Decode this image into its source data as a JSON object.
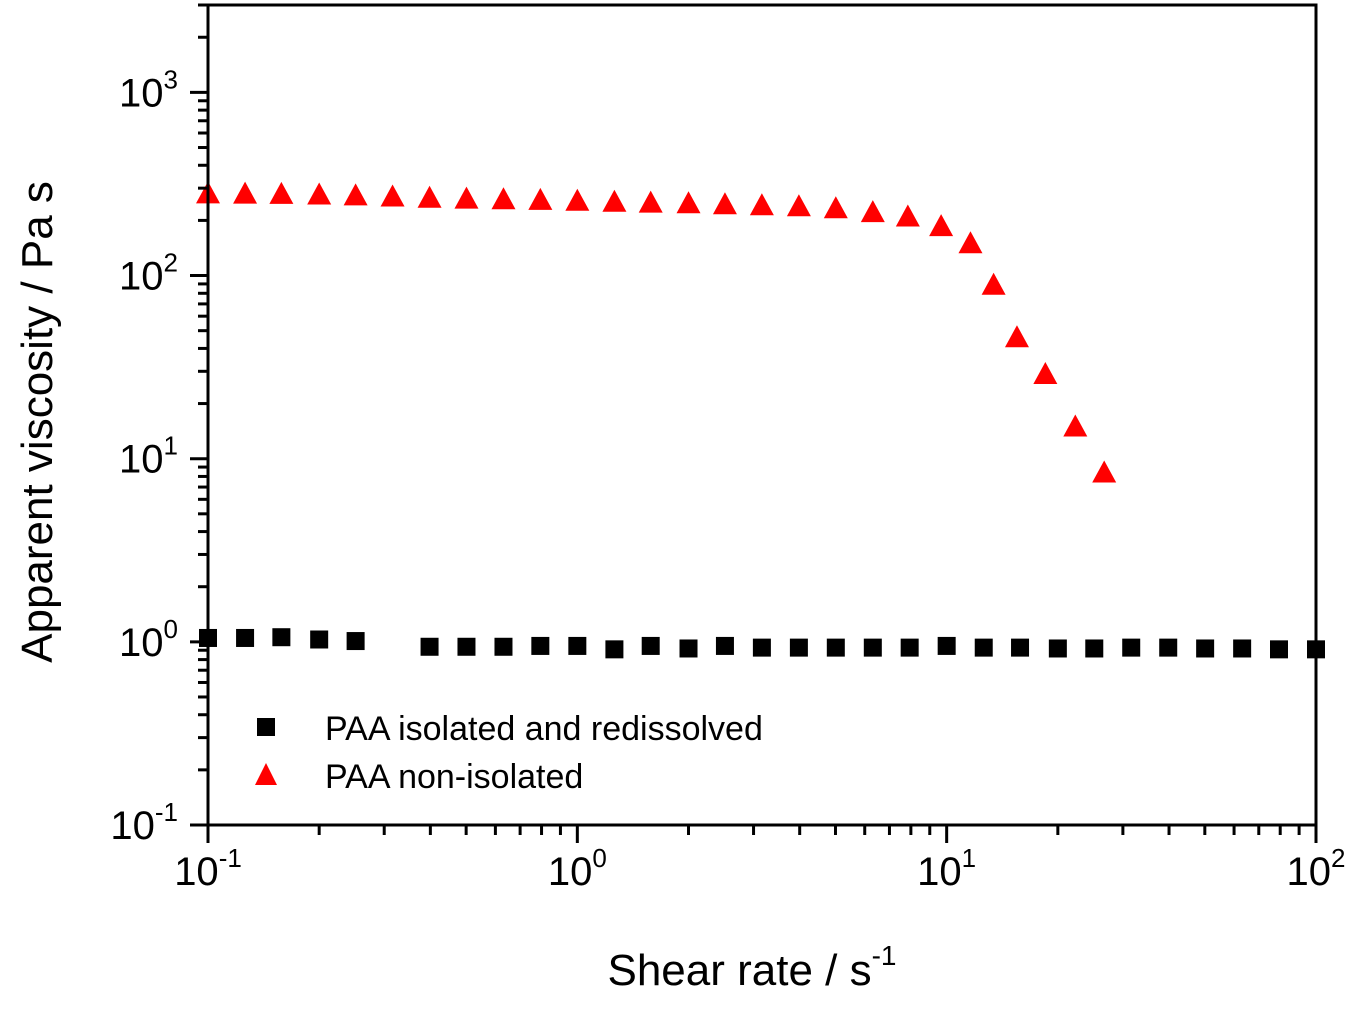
{
  "chart_data": {
    "type": "scatter",
    "xscale": "log",
    "yscale": "log",
    "xlabel": "Shear rate / s",
    "xlabel_sup": "-1",
    "ylabel": "Apparent viscosity / Pa s",
    "xlim": [
      0.1,
      100
    ],
    "ylim": [
      0.1,
      3000
    ],
    "x_ticks": [
      {
        "base": "10",
        "exp": "-1",
        "value": 0.1
      },
      {
        "base": "10",
        "exp": "0",
        "value": 1
      },
      {
        "base": "10",
        "exp": "1",
        "value": 10
      },
      {
        "base": "10",
        "exp": "2",
        "value": 100
      }
    ],
    "y_ticks": [
      {
        "base": "10",
        "exp": "-1",
        "value": 0.1
      },
      {
        "base": "10",
        "exp": "0",
        "value": 1
      },
      {
        "base": "10",
        "exp": "1",
        "value": 10
      },
      {
        "base": "10",
        "exp": "2",
        "value": 100
      },
      {
        "base": "10",
        "exp": "3",
        "value": 1000
      }
    ],
    "legend_position": "bottom-left",
    "series": [
      {
        "name": "PAA isolated and redissolved",
        "marker": "square",
        "color": "#000000",
        "x": [
          0.1,
          0.126,
          0.158,
          0.2,
          0.251,
          0.398,
          0.501,
          0.631,
          0.794,
          1.0,
          1.26,
          1.58,
          2.0,
          2.51,
          3.16,
          3.98,
          5.01,
          6.31,
          7.94,
          10.0,
          12.6,
          15.8,
          20.0,
          25.1,
          31.6,
          39.8,
          50.1,
          63.1,
          79.4,
          100
        ],
        "y": [
          1.05,
          1.05,
          1.06,
          1.03,
          1.01,
          0.94,
          0.94,
          0.94,
          0.95,
          0.95,
          0.91,
          0.95,
          0.92,
          0.95,
          0.93,
          0.93,
          0.93,
          0.93,
          0.93,
          0.95,
          0.93,
          0.93,
          0.92,
          0.92,
          0.93,
          0.93,
          0.92,
          0.92,
          0.91,
          0.91
        ]
      },
      {
        "name": "PAA non-isolated",
        "marker": "triangle",
        "color": "#ff0000",
        "x": [
          0.1,
          0.126,
          0.158,
          0.2,
          0.251,
          0.316,
          0.398,
          0.501,
          0.631,
          0.794,
          1.0,
          1.26,
          1.58,
          2.0,
          2.51,
          3.16,
          3.98,
          5.01,
          6.31,
          7.85,
          9.66,
          11.6,
          13.4,
          15.5,
          18.5,
          22.3,
          26.7
        ],
        "y": [
          281,
          280,
          279,
          277,
          274,
          270,
          266,
          263,
          261,
          259,
          256,
          253,
          250,
          248,
          245,
          242,
          239,
          233,
          222,
          210,
          186,
          150,
          89,
          46,
          29,
          15,
          8.4
        ]
      }
    ]
  }
}
